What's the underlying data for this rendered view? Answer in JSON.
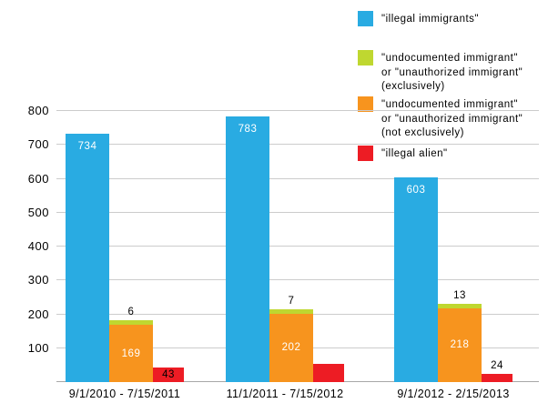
{
  "chart_data": {
    "type": "bar",
    "title": "",
    "xlabel": "",
    "ylabel": "",
    "categories": [
      "9/1/2010 - 7/15/2011",
      "11/1/2011 - 7/15/2012",
      "9/1/2012 - 2/15/2013"
    ],
    "series": [
      {
        "name": "\"illegal immigrants\"",
        "color": "#29abe2",
        "values": [
          734,
          783,
          603
        ],
        "data_labels": [
          "734",
          "783",
          "603"
        ],
        "label_color": "#ffffff"
      },
      {
        "name": "\"undocumented immigrant\"\nor \"unauthorized immigrant\"\n(exclusively)",
        "color": "#bfd730",
        "values": [
          6,
          7,
          13
        ],
        "data_labels": [
          "6",
          "7",
          "13"
        ],
        "label_color": "#000000",
        "stacked_on": "not-exclusively"
      },
      {
        "name": "\"undocumented immigrant\"\nor \"unauthorized immigrant\"\n(not exclusively)",
        "color": "#f7941e",
        "values": [
          169,
          202,
          218
        ],
        "data_labels": [
          "169",
          "202",
          "218"
        ],
        "label_color": "#ffffff",
        "stack": "not-exclusively"
      },
      {
        "name": "\"illegal alien\"",
        "color": "#ed1c24",
        "values": [
          43,
          55,
          24
        ],
        "data_labels": [
          "43",
          "",
          "24"
        ],
        "label_color": "#000000"
      }
    ],
    "ylim": [
      0,
      800
    ],
    "yticks": [
      100,
      200,
      300,
      400,
      500,
      600,
      700,
      800
    ],
    "grid": true,
    "legend_position": "top-right"
  }
}
